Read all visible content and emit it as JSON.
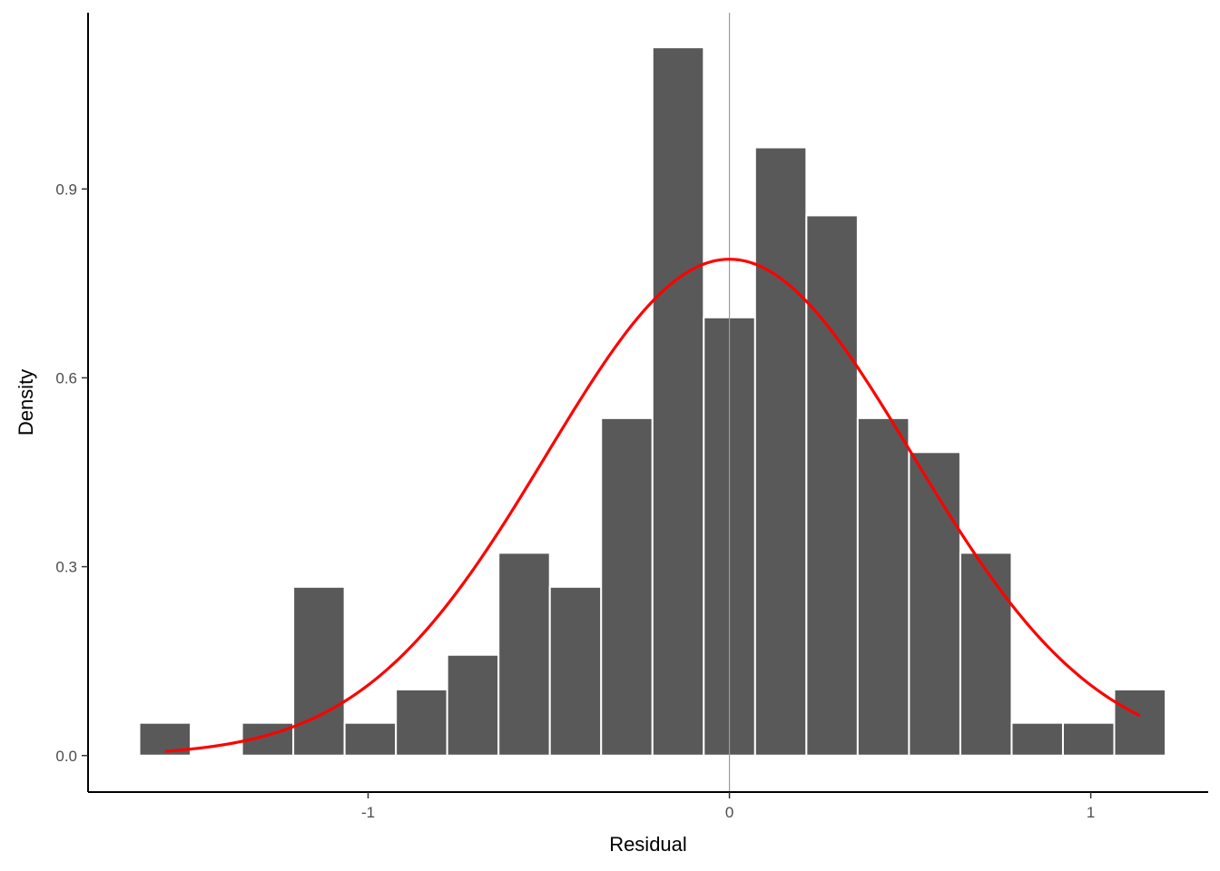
{
  "chart_data": {
    "type": "bar",
    "subtype": "histogram",
    "xlabel": "Residual",
    "ylabel": "Density",
    "xlim": [
      -1.775,
      1.325
    ],
    "ylim": [
      -0.058,
      1.18
    ],
    "x_ticks": [
      {
        "value": -1,
        "label": "-1"
      },
      {
        "value": 0,
        "label": "0"
      },
      {
        "value": 1,
        "label": "1"
      }
    ],
    "y_ticks": [
      {
        "value": 0.0,
        "label": "0.0"
      },
      {
        "value": 0.3,
        "label": "0.3"
      },
      {
        "value": 0.6,
        "label": "0.6"
      },
      {
        "value": 0.9,
        "label": "0.9"
      }
    ],
    "bin_width": 0.142,
    "bins": [
      {
        "x": -1.562,
        "density": 0.052
      },
      {
        "x": -1.42,
        "density": 0.0
      },
      {
        "x": -1.278,
        "density": 0.052
      },
      {
        "x": -1.136,
        "density": 0.268
      },
      {
        "x": -0.994,
        "density": 0.052
      },
      {
        "x": -0.852,
        "density": 0.105
      },
      {
        "x": -0.71,
        "density": 0.16
      },
      {
        "x": -0.568,
        "density": 0.322
      },
      {
        "x": -0.426,
        "density": 0.268
      },
      {
        "x": -0.284,
        "density": 0.536
      },
      {
        "x": -0.142,
        "density": 1.125
      },
      {
        "x": 0.0,
        "density": 0.696
      },
      {
        "x": 0.142,
        "density": 0.966
      },
      {
        "x": 0.284,
        "density": 0.858
      },
      {
        "x": 0.426,
        "density": 0.536
      },
      {
        "x": 0.568,
        "density": 0.482
      },
      {
        "x": 0.71,
        "density": 0.322
      },
      {
        "x": 0.852,
        "density": 0.052
      },
      {
        "x": 0.994,
        "density": 0.052
      },
      {
        "x": 1.136,
        "density": 0.105
      }
    ],
    "normal_curve": {
      "mean": 0.0,
      "sd": 0.506,
      "x_range": [
        -1.562,
        1.136
      ]
    },
    "reference_line_x": 0,
    "colors": {
      "bar_fill": "#595959",
      "bar_border": "#ffffff",
      "curve": "#ff0000",
      "reference_line": "#9a9a9a",
      "axis": "#000000"
    },
    "grid": false,
    "legend": "none"
  }
}
